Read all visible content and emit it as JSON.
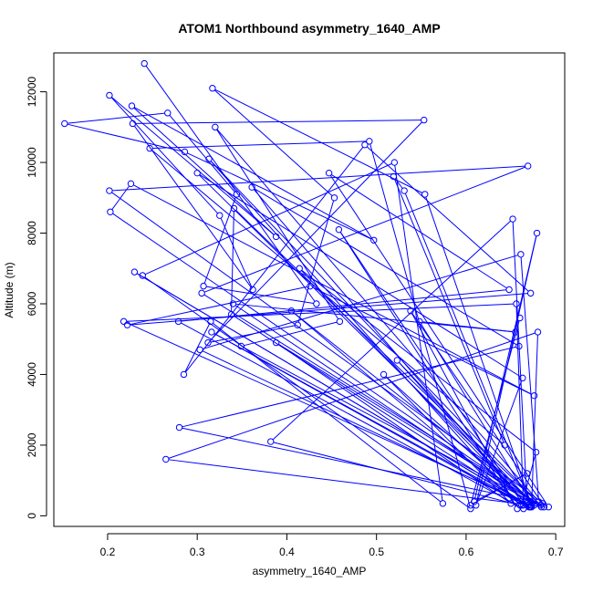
{
  "chart_data": {
    "type": "line",
    "title": "ATOM1 Northbound asymmetry_1640_AMP",
    "xlabel": "asymmetry_1640_AMP",
    "ylabel": "Altitude (m)",
    "xlim": [
      0.14,
      0.71
    ],
    "ylim": [
      -300,
      13100
    ],
    "x_ticks": [
      0.2,
      0.3,
      0.4,
      0.5,
      0.6,
      0.7
    ],
    "x_tick_labels": [
      "0.2",
      "0.3",
      "0.4",
      "0.5",
      "0.6",
      "0.7"
    ],
    "y_ticks": [
      0,
      2000,
      4000,
      6000,
      8000,
      10000,
      12000
    ],
    "y_tick_labels": [
      "0",
      "2000",
      "4000",
      "6000",
      "8000",
      "10000",
      "12000"
    ],
    "grid": false,
    "legend": "none",
    "series_color": "#0000ff",
    "series": [
      {
        "x": [
          0.241,
          0.433,
          0.307,
          0.344,
          0.267,
          0.152,
          0.286,
          0.497,
          0.227,
          0.388,
          0.202,
          0.325,
          0.362,
          0.228,
          0.553,
          0.312,
          0.412,
          0.453,
          0.317,
          0.554,
          0.673,
          0.531,
          0.519,
          0.643,
          0.247,
          0.492,
          0.605,
          0.239,
          0.52,
          0.574,
          0.315,
          0.285,
          0.487,
          0.672,
          0.222,
          0.426,
          0.676,
          0.226,
          0.203,
          0.684,
          0.349,
          0.459,
          0.32,
          0.681,
          0.661,
          0.303,
          0.673,
          0.68,
          0.265,
          0.687,
          0.305,
          0.669,
          0.202,
          0.692,
          0.447,
          0.648,
          0.279,
          0.664,
          0.656,
          0.218,
          0.668,
          0.652,
          0.382,
          0.66,
          0.313,
          0.683,
          0.341,
          0.338,
          0.669,
          0.23,
          0.672,
          0.508,
          0.65,
          0.388,
          0.675,
          0.405,
          0.662,
          0.678,
          0.414,
          0.671,
          0.316,
          0.664,
          0.458,
          0.657,
          0.538,
          0.685,
          0.28,
          0.659,
          0.361,
          0.67,
          0.523,
          0.676,
          0.34,
          0.655,
          0.548,
          0.672,
          0.3,
          0.663,
          0.611,
          0.679,
          0.609,
          0.668,
          0.605,
          0.66
        ],
        "y": [
          12800,
          6000,
          6500,
          9100,
          11400,
          11100,
          10300,
          7800,
          11600,
          7900,
          11900,
          8500,
          6400,
          11100,
          11200,
          4900,
          5400,
          9000,
          12100,
          9100,
          300,
          9200,
          9600,
          2000,
          10400,
          10600,
          200,
          6800,
          10000,
          350,
          5500,
          4000,
          10500,
          6300,
          5400,
          6500,
          3400,
          9400,
          8600,
          250,
          4800,
          5500,
          11000,
          400,
          7400,
          4700,
          250,
          5200,
          1600,
          250,
          6300,
          9900,
          9200,
          250,
          9700,
          6400,
          5500,
          200,
          6000,
          5500,
          350,
          8400,
          2100,
          300,
          10100,
          300,
          8700,
          5700,
          300,
          6900,
          250,
          4000,
          350,
          4900,
          400,
          5800,
          300,
          1800,
          7000,
          250,
          5200,
          300,
          8100,
          200,
          5800,
          350,
          2500,
          4800,
          9300,
          250,
          4400,
          300,
          6000,
          5200,
          5500,
          400,
          9700,
          3900,
          300,
          8000,
          400,
          1200,
          300,
          5600
        ]
      }
    ]
  }
}
